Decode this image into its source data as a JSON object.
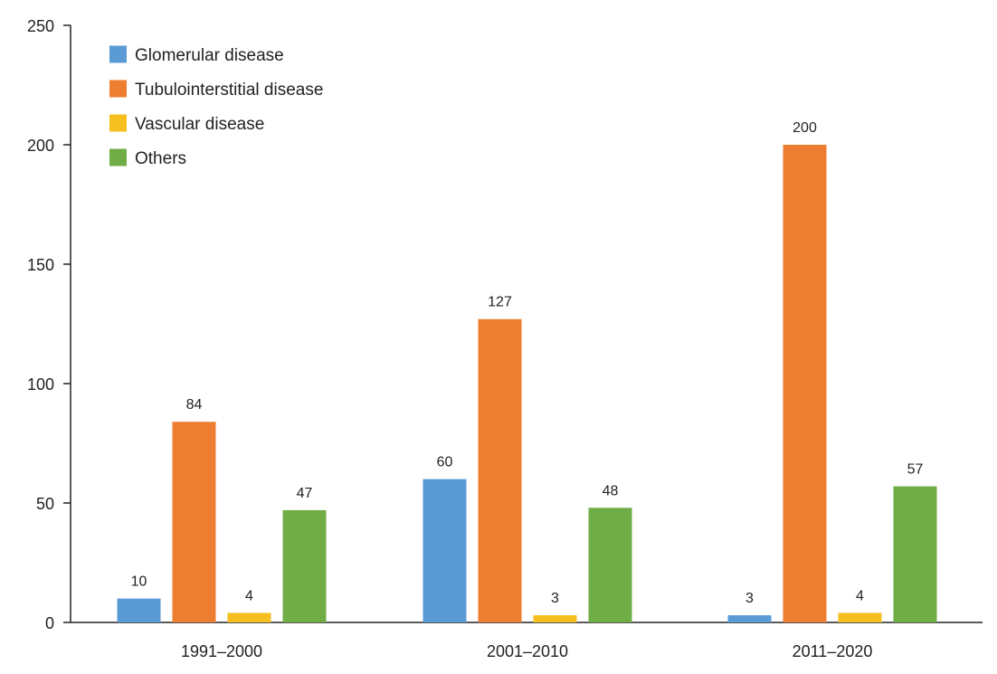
{
  "chart_data": {
    "type": "bar",
    "title": "",
    "xlabel": "",
    "ylabel": "",
    "categories": [
      "1991–2000",
      "2001–2010",
      "2011–2020"
    ],
    "series": [
      {
        "name": "Glomerular disease",
        "color": "#5b9bd5",
        "values": [
          10,
          60,
          3
        ]
      },
      {
        "name": "Tubulointerstitial disease",
        "color": "#ed7d31",
        "values": [
          84,
          127,
          200
        ]
      },
      {
        "name": "Vascular disease",
        "color": "#f5bf1f",
        "values": [
          4,
          3,
          4
        ]
      },
      {
        "name": "Others",
        "color": "#70ad47",
        "values": [
          47,
          48,
          57
        ]
      }
    ],
    "ylim": [
      0,
      250
    ],
    "yticks": [
      0,
      50,
      100,
      150,
      200,
      250
    ],
    "grid": false,
    "legend_position": "top-left",
    "data_labels": true
  }
}
